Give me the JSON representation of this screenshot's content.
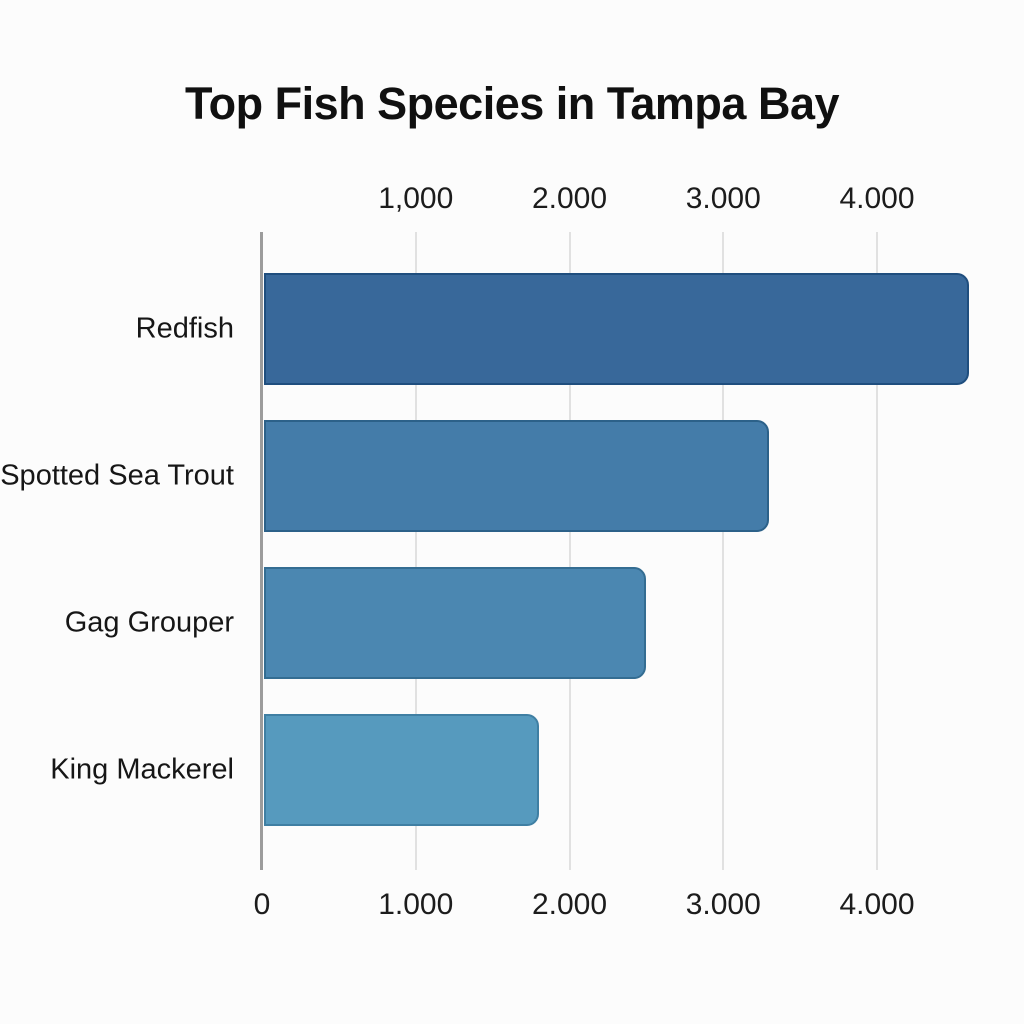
{
  "page": {
    "background": "#fcfcfc"
  },
  "chart_data": {
    "type": "bar",
    "orientation": "horizontal",
    "title": "Top Fish Species in Tampa Bay",
    "xlabel": "",
    "ylabel": "",
    "categories": [
      "Redfish",
      "Spotted Sea Trout",
      "Gag Grouper",
      "King Mackerel"
    ],
    "values": [
      4600,
      3300,
      2500,
      1800
    ],
    "bar_colors": [
      "#38689A",
      "#447CA9",
      "#4B87B1",
      "#569ABE"
    ],
    "bar_border_colors": [
      "#1F4E7E",
      "#2C6189",
      "#346D92",
      "#3F7FA3"
    ],
    "xlim": [
      0,
      4800
    ],
    "x_gridlines": [
      1000,
      2000,
      3000,
      4000
    ],
    "top_axis_ticks": [
      {
        "value": 1000,
        "label": "1,000"
      },
      {
        "value": 2000,
        "label": "2.000"
      },
      {
        "value": 3000,
        "label": "3.000"
      },
      {
        "value": 4000,
        "label": "4.000"
      }
    ],
    "bottom_axis_ticks": [
      {
        "value": 0,
        "label": "0"
      },
      {
        "value": 1000,
        "label": "1.000"
      },
      {
        "value": 2000,
        "label": "2.000"
      },
      {
        "value": 3000,
        "label": "3.000"
      },
      {
        "value": 4000,
        "label": "4.000"
      }
    ],
    "grid": true,
    "legend": false,
    "axis_line_color": "#9c9c9c",
    "gridline_color": "#e1e1e1",
    "text_color": "#161616"
  }
}
